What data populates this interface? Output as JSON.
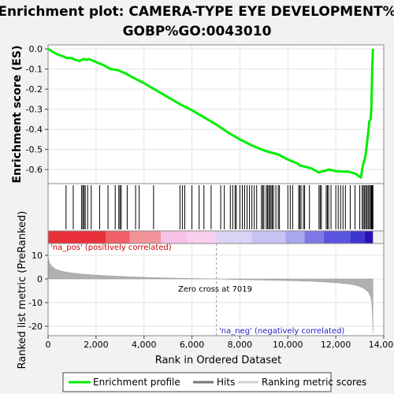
{
  "title_line1": "Enrichment plot: CAMERA-TYPE EYE DEVELOPMENT%",
  "title_line2": "GOBP%GO:0043010",
  "chart_data": {
    "type": "line",
    "es_ylabel": "Enrichment score (ES)",
    "metric_ylabel": "Ranked list metric (PreRanked)",
    "xlabel": "Rank in Ordered Dataset",
    "xlim": [
      0,
      14000
    ],
    "x_ticks": [
      "0",
      "2,000",
      "4,000",
      "6,000",
      "8,000",
      "10,000",
      "12,000",
      "14,000"
    ],
    "es_ylim": [
      -0.67,
      0.02
    ],
    "es_ticks": [
      "0.0",
      "-0.1",
      "-0.2",
      "-0.3",
      "-0.4",
      "-0.5",
      "-0.6"
    ],
    "metric_ylim": [
      -24,
      15
    ],
    "metric_ticks": [
      "10",
      "0",
      "-10",
      "-20"
    ],
    "zero_cross_label": "Zero cross at 7019",
    "zero_cross": 7019,
    "pos_label": "'na_pos' (positively correlated)",
    "neg_label": "'na_neg' (negatively correlated)",
    "series": [
      {
        "name": "Enrichment profile",
        "color": "#00ee00",
        "x": [
          0,
          350,
          700,
          750,
          1000,
          1050,
          1300,
          1400,
          1500,
          1600,
          1700,
          1800,
          2000,
          2300,
          2600,
          2900,
          3200,
          3500,
          4000,
          4500,
          5000,
          5500,
          6000,
          6500,
          7000,
          7500,
          8000,
          8500,
          9000,
          9300,
          9600,
          10000,
          10400,
          10500,
          10700,
          11000,
          11300,
          11400,
          11600,
          11700,
          12000,
          12300,
          12500,
          12800,
          13050,
          13100,
          13150,
          13200,
          13250,
          13300,
          13350,
          13400,
          13450,
          13480,
          13500,
          13520,
          13550
        ],
        "y": [
          0.0,
          -0.025,
          -0.04,
          -0.045,
          -0.045,
          -0.05,
          -0.06,
          -0.055,
          -0.05,
          -0.055,
          -0.05,
          -0.055,
          -0.065,
          -0.08,
          -0.1,
          -0.105,
          -0.12,
          -0.14,
          -0.17,
          -0.205,
          -0.24,
          -0.275,
          -0.305,
          -0.34,
          -0.375,
          -0.415,
          -0.45,
          -0.48,
          -0.505,
          -0.515,
          -0.525,
          -0.55,
          -0.57,
          -0.58,
          -0.585,
          -0.595,
          -0.615,
          -0.61,
          -0.605,
          -0.6,
          -0.608,
          -0.61,
          -0.61,
          -0.62,
          -0.64,
          -0.6,
          -0.57,
          -0.55,
          -0.52,
          -0.47,
          -0.42,
          -0.36,
          -0.35,
          -0.3,
          -0.2,
          -0.1,
          0.0
        ]
      }
    ],
    "legend": [
      "Enrichment profile",
      "Hits",
      "Ranking metric scores"
    ],
    "hits": [
      750,
      1050,
      1400,
      1450,
      1500,
      1550,
      1650,
      1800,
      2150,
      2500,
      2800,
      2950,
      3000,
      3050,
      3300,
      3650,
      3800,
      4400,
      5500,
      5600,
      5700,
      6000,
      6300,
      6500,
      6800,
      7200,
      7350,
      7600,
      7700,
      7800,
      7850,
      8000,
      8100,
      8200,
      8300,
      8400,
      8500,
      8600,
      8700,
      8900,
      8950,
      9000,
      9100,
      9150,
      9200,
      9250,
      9300,
      9350,
      9400,
      9500,
      9600,
      9650,
      10000,
      10100,
      10200,
      10450,
      10500,
      10550,
      10650,
      10700,
      10900,
      11300,
      11350,
      11400,
      11600,
      11650,
      11700,
      11800,
      12000,
      12100,
      12200,
      12300,
      12400,
      12600,
      12800,
      13000,
      13100,
      13150,
      13200,
      13250,
      13300,
      13350,
      13400,
      13450,
      13480,
      13500,
      13520,
      13550
    ],
    "metric_curve": {
      "x": [
        0,
        50,
        150,
        300,
        600,
        1000,
        1500,
        2000,
        3000,
        4000,
        5000,
        6000,
        7019,
        8000,
        9000,
        10000,
        11000,
        11500,
        12000,
        12500,
        12800,
        13000,
        13200,
        13350,
        13450,
        13500,
        13530,
        13550
      ],
      "y": [
        9.5,
        7,
        5.5,
        4.2,
        3.2,
        2.5,
        2.0,
        1.6,
        1.1,
        0.7,
        0.4,
        0.2,
        0,
        -0.3,
        -0.5,
        -0.7,
        -1.0,
        -1.3,
        -1.6,
        -2.1,
        -2.6,
        -3.2,
        -4.2,
        -5.5,
        -7.5,
        -10,
        -16,
        -23
      ]
    }
  },
  "colors": {
    "profile": "#00ee00",
    "hits": "#000000",
    "metric_fill": "#b0b0b0",
    "pos_text": "#cc0000",
    "neg_text": "#2222cc"
  }
}
